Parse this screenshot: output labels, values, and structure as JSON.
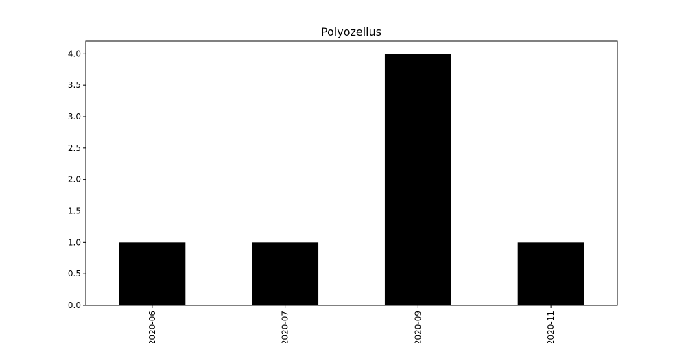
{
  "chart_data": {
    "type": "bar",
    "title": "Polyozellus",
    "categories": [
      "2020-06",
      "2020-07",
      "2020-09",
      "2020-11"
    ],
    "values": [
      1,
      1,
      4,
      1
    ],
    "xlabel": "",
    "ylabel": "",
    "ylim": [
      0,
      4.2
    ],
    "yticks": [
      "0.0",
      "0.5",
      "1.0",
      "1.5",
      "2.0",
      "2.5",
      "3.0",
      "3.5",
      "4.0"
    ],
    "bar_color": "#000000",
    "grid": false,
    "legend": "none"
  }
}
